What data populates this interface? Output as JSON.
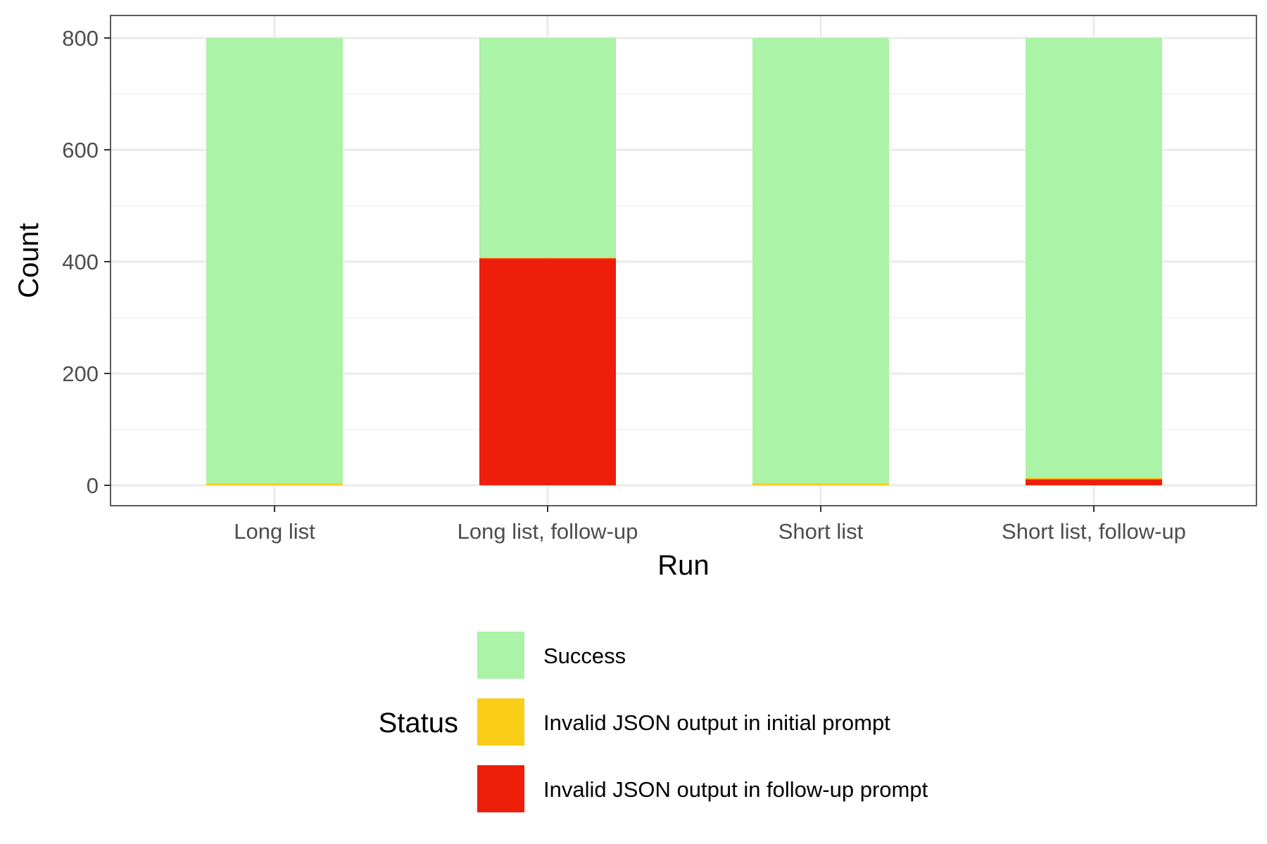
{
  "chart_data": {
    "type": "bar",
    "stacked": true,
    "title": "",
    "xlabel": "Run",
    "ylabel": "Count",
    "categories": [
      "Long list",
      "Long list, follow-up",
      "Short list",
      "Short list, follow-up"
    ],
    "ylim": [
      0,
      835
    ],
    "yticks": [
      0,
      200,
      400,
      600,
      800
    ],
    "grid": true,
    "legend_position": "bottom",
    "legend_title": "Status",
    "series": [
      {
        "name": "Invalid JSON output in follow-up prompt",
        "color": "#ee1f0a",
        "values": [
          0,
          406,
          0,
          11
        ]
      },
      {
        "name": "Invalid JSON output in initial prompt",
        "color": "#facd17",
        "values": [
          4,
          2,
          4,
          3
        ]
      },
      {
        "name": "Success",
        "color": "#abf3a6",
        "values": [
          796,
          392,
          796,
          786
        ]
      }
    ],
    "legend_order": [
      "Success",
      "Invalid JSON output in initial prompt",
      "Invalid JSON output in follow-up prompt"
    ]
  }
}
